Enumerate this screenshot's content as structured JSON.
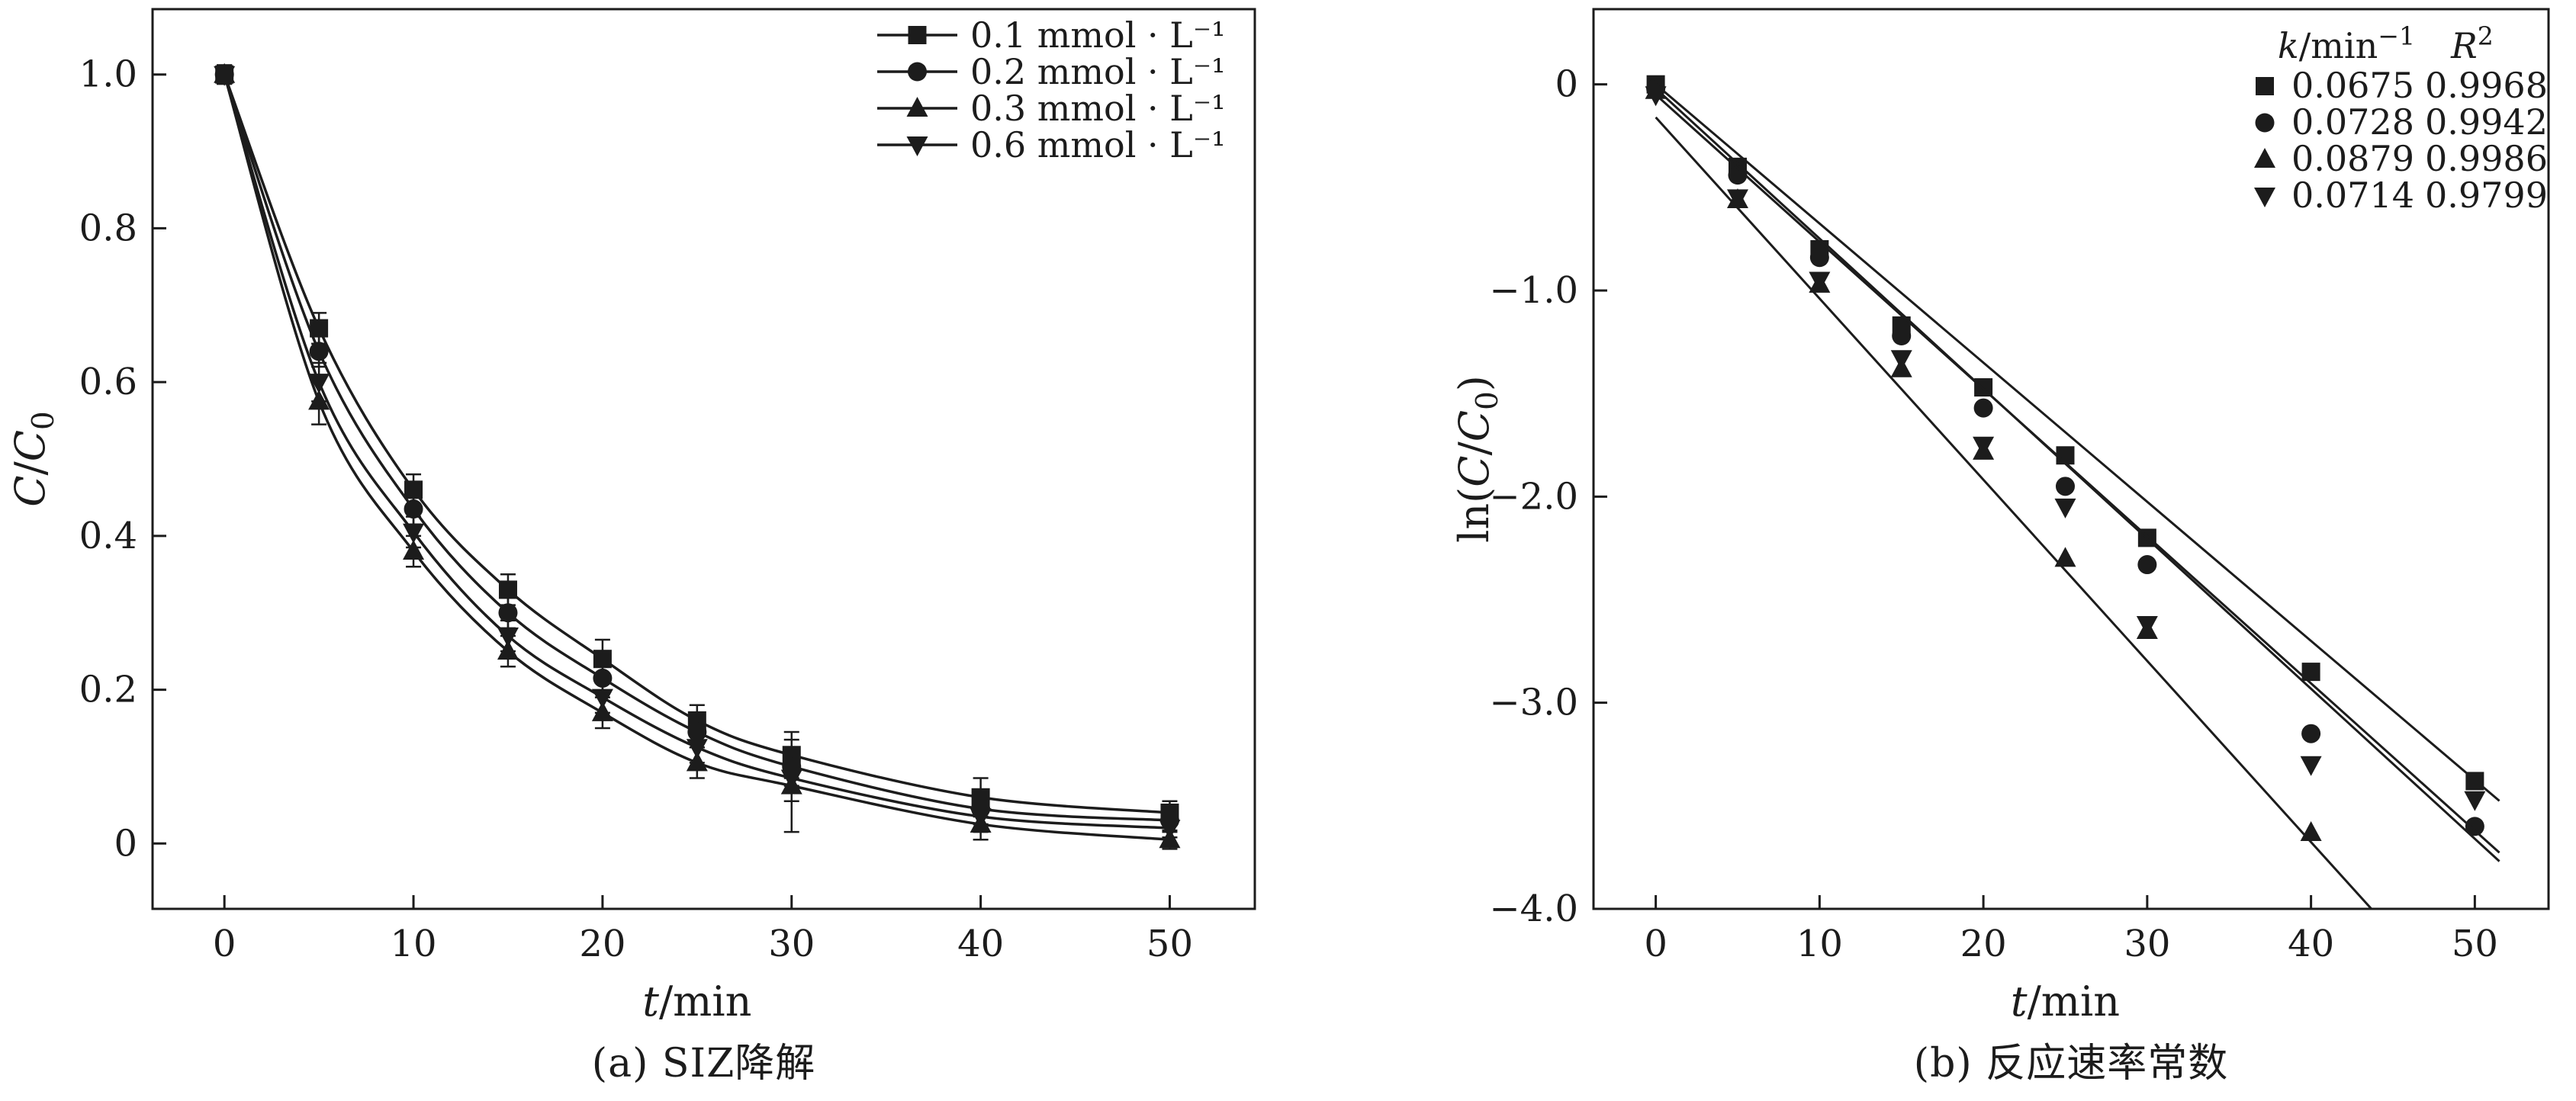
{
  "figure": {
    "background_color": "#ffffff",
    "ink_color": "#1c1c1c"
  },
  "chart_data": [
    {
      "id": "panel-a",
      "type": "line",
      "caption": "(a) SIZ降解",
      "xlabel": "t/min",
      "ylabel": "C/C₀",
      "xlabel_rich": [
        {
          "t": "t",
          "i": true
        },
        {
          "t": "/min"
        }
      ],
      "ylabel_rich": [
        {
          "t": "C",
          "i": true
        },
        {
          "t": "/"
        },
        {
          "t": "C",
          "i": true
        },
        {
          "t": "0",
          "sub": true
        }
      ],
      "xlim": [
        -3.8,
        54.5
      ],
      "ylim": [
        -0.085,
        1.085
      ],
      "grid": false,
      "legend_position": "top-right-inside",
      "xticks": {
        "values": [
          0,
          10,
          20,
          30,
          40,
          50
        ],
        "labels": [
          "0",
          "10",
          "20",
          "30",
          "40",
          "50"
        ]
      },
      "yticks": {
        "values": [
          1.0,
          0.8,
          0.6,
          0.4,
          0.2,
          0
        ],
        "labels": [
          "1.0",
          "0.8",
          "0.6",
          "0.4",
          "0.2",
          "0"
        ]
      },
      "x": [
        0,
        5,
        10,
        15,
        20,
        25,
        30,
        40,
        50
      ],
      "series": [
        {
          "name": "0.1 mmol · L⁻¹",
          "marker": "square",
          "values": [
            1.0,
            0.67,
            0.46,
            0.33,
            0.24,
            0.16,
            0.115,
            0.06,
            0.04
          ],
          "errors": [
            0.012,
            0.02,
            0.02,
            0.02,
            0.025,
            0.02,
            0.03,
            0.025,
            0.015
          ]
        },
        {
          "name": "0.2 mmol · L⁻¹",
          "marker": "circle",
          "values": [
            1.0,
            0.64,
            0.435,
            0.3,
            0.215,
            0.145,
            0.1,
            0.045,
            0.03
          ],
          "errors": [
            0.012,
            0.02,
            0.02,
            0.02,
            0.02,
            0.02,
            0.025,
            0.02,
            0.015
          ]
        },
        {
          "name": "0.3 mmol · L⁻¹",
          "marker": "triangle-up",
          "values": [
            1.0,
            0.575,
            0.38,
            0.25,
            0.17,
            0.105,
            0.075,
            0.025,
            0.005
          ],
          "errors": [
            0.012,
            0.03,
            0.02,
            0.02,
            0.02,
            0.02,
            0.06,
            0.02,
            0.012
          ]
        },
        {
          "name": "0.6 mmol · L⁻¹",
          "marker": "triangle-down",
          "values": [
            1.0,
            0.6,
            0.405,
            0.27,
            0.19,
            0.125,
            0.085,
            0.035,
            0.02
          ],
          "errors": [
            0.012,
            0.025,
            0.02,
            0.02,
            0.02,
            0.02,
            0.03,
            0.02,
            0.012
          ]
        }
      ]
    },
    {
      "id": "panel-b",
      "type": "scatter",
      "caption": "(b) 反应速率常数",
      "xlabel": "t/min",
      "ylabel": "ln(C/C₀)",
      "xlabel_rich": [
        {
          "t": "t",
          "i": true
        },
        {
          "t": "/min"
        }
      ],
      "ylabel_rich": [
        {
          "t": "ln("
        },
        {
          "t": "C",
          "i": true
        },
        {
          "t": "/"
        },
        {
          "t": "C",
          "i": true
        },
        {
          "t": "0",
          "sub": true
        },
        {
          "t": ")"
        }
      ],
      "xlim": [
        -3.8,
        54.5
      ],
      "ylim": [
        -4.0,
        0.365
      ],
      "grid": false,
      "legend_position": "top-right-inside",
      "xticks": {
        "values": [
          0,
          10,
          20,
          30,
          40,
          50
        ],
        "labels": [
          "0",
          "10",
          "20",
          "30",
          "40",
          "50"
        ]
      },
      "yticks": {
        "values": [
          0,
          -1.0,
          -2.0,
          -3.0,
          -4.0
        ],
        "labels": [
          "0",
          "−1.0",
          "−2.0",
          "−3.0",
          "−4.0"
        ]
      },
      "x": [
        0,
        5,
        10,
        15,
        20,
        25,
        30,
        40,
        50
      ],
      "legend_header": {
        "k": "k/min⁻¹",
        "r2": "R²",
        "k_rich": [
          {
            "t": "k",
            "i": true
          },
          {
            "t": "/min"
          },
          {
            "t": "−1",
            "sup": true
          }
        ],
        "r2_rich": [
          {
            "t": "R",
            "i": true
          },
          {
            "t": "2",
            "sup": true
          }
        ]
      },
      "series": [
        {
          "marker": "square",
          "k": "0.0675",
          "r2": "0.9968",
          "values": [
            0,
            -0.4,
            -0.8,
            -1.17,
            -1.47,
            -1.8,
            -2.2,
            -2.85,
            -3.38
          ],
          "fit": {
            "slope": -0.0675,
            "intercept": 0.0,
            "x_end": 51.5
          }
        },
        {
          "marker": "circle",
          "k": "0.0728",
          "r2": "0.9942",
          "values": [
            -0.02,
            -0.44,
            -0.84,
            -1.22,
            -1.57,
            -1.95,
            -2.33,
            -3.15,
            -3.6
          ],
          "fit": {
            "slope": -0.0728,
            "intercept": -0.02,
            "x_end": 51.5
          }
        },
        {
          "marker": "triangle-up",
          "k": "0.0879",
          "r2": "0.9986",
          "values": [
            -0.03,
            -0.56,
            -0.97,
            -1.38,
            -1.78,
            -2.3,
            -2.65,
            -3.63,
            null
          ],
          "fit": {
            "slope": -0.0879,
            "intercept": -0.16,
            "x_end": 51.5
          }
        },
        {
          "marker": "triangle-down",
          "k": "0.0714",
          "r2": "0.9799",
          "values": [
            -0.05,
            -0.55,
            -0.95,
            -1.33,
            -1.75,
            -2.05,
            -2.62,
            -3.3,
            -3.47
          ],
          "fit": {
            "slope": -0.0714,
            "intercept": -0.05,
            "x_end": 51.5
          }
        }
      ]
    }
  ]
}
